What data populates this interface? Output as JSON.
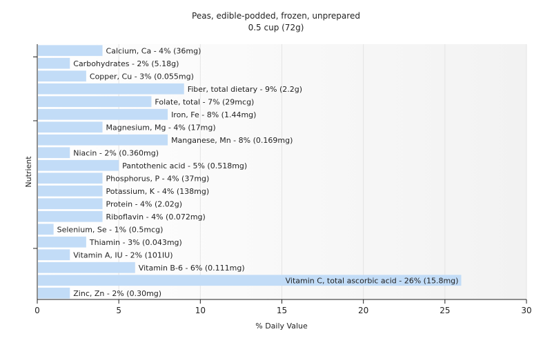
{
  "chart_data": {
    "type": "bar",
    "orientation": "horizontal",
    "title": "Peas, edible-podded, frozen, unprepared",
    "subtitle": "0.5 cup (72g)",
    "xlabel": "% Daily Value",
    "ylabel": "Nutrient",
    "xlim": [
      0,
      30
    ],
    "xticks": [
      0,
      5,
      10,
      15,
      20,
      25,
      30
    ],
    "grid": true,
    "bar_color": "#c2dcf7",
    "categories": [
      "Calcium, Ca",
      "Carbohydrates",
      "Copper, Cu",
      "Fiber, total dietary",
      "Folate, total",
      "Iron, Fe",
      "Magnesium, Mg",
      "Manganese, Mn",
      "Niacin",
      "Pantothenic acid",
      "Phosphorus, P",
      "Potassium, K",
      "Protein",
      "Riboflavin",
      "Selenium, Se",
      "Thiamin",
      "Vitamin A, IU",
      "Vitamin B-6",
      "Vitamin C, total ascorbic acid",
      "Zinc, Zn"
    ],
    "values": [
      4,
      2,
      3,
      9,
      7,
      8,
      4,
      8,
      2,
      5,
      4,
      4,
      4,
      4,
      1,
      3,
      2,
      6,
      26,
      2
    ],
    "labels": [
      "Calcium, Ca - 4% (36mg)",
      "Carbohydrates - 2% (5.18g)",
      "Copper, Cu - 3% (0.055mg)",
      "Fiber, total dietary - 9% (2.2g)",
      "Folate, total - 7% (29mcg)",
      "Iron, Fe - 8% (1.44mg)",
      "Magnesium, Mg - 4% (17mg)",
      "Manganese, Mn - 8% (0.169mg)",
      "Niacin - 2% (0.360mg)",
      "Pantothenic acid - 5% (0.518mg)",
      "Phosphorus, P - 4% (37mg)",
      "Potassium, K - 4% (138mg)",
      "Protein - 4% (2.02g)",
      "Riboflavin - 4% (0.072mg)",
      "Selenium, Se - 1% (0.5mcg)",
      "Thiamin - 3% (0.043mg)",
      "Vitamin A, IU - 2% (101IU)",
      "Vitamin B-6 - 6% (0.111mg)",
      "Vitamin C, total ascorbic acid - 26% (15.8mg)",
      "Zinc, Zn - 2% (0.30mg)"
    ]
  }
}
